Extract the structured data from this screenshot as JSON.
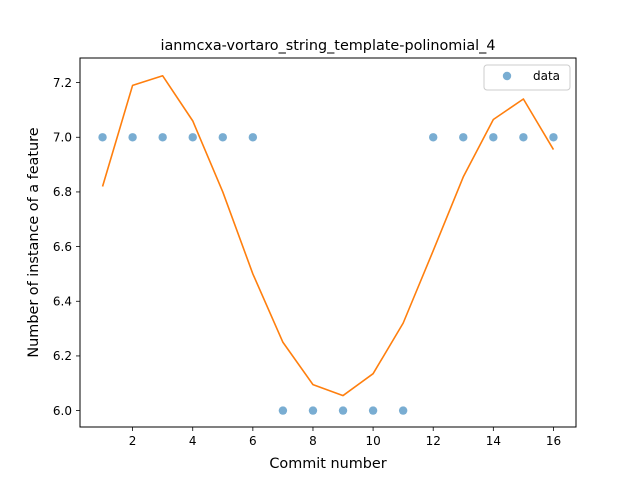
{
  "chart_data": {
    "type": "scatter",
    "title": "ianmcxa-vortaro_string_template-polinomial_4",
    "xlabel": "Commit number",
    "ylabel": "Number of instance of a feature",
    "xlim": [
      0.25,
      16.75
    ],
    "ylim": [
      5.94,
      7.29
    ],
    "xticks": [
      "2",
      "4",
      "6",
      "8",
      "10",
      "12",
      "14",
      "16"
    ],
    "yticks": [
      "6.0",
      "6.2",
      "6.4",
      "6.6",
      "6.8",
      "7.0",
      "7.2"
    ],
    "grid": false,
    "legend": {
      "placement": "top-right",
      "entries": [
        "data"
      ]
    },
    "series": [
      {
        "name": "data",
        "kind": "scatter",
        "color": "#1f77b4",
        "x": [
          1,
          2,
          3,
          4,
          5,
          6,
          7,
          8,
          9,
          10,
          11,
          12,
          13,
          14,
          15,
          16
        ],
        "y": [
          7,
          7,
          7,
          7,
          7,
          7,
          6,
          6,
          6,
          6,
          6,
          7,
          7,
          7,
          7,
          7
        ]
      },
      {
        "kind": "line",
        "color": "#ff7f0e",
        "x": [
          1,
          2,
          3,
          4,
          5,
          6,
          7,
          8,
          9,
          10,
          11,
          12,
          13,
          14,
          15,
          16
        ],
        "y": [
          6.82,
          7.19,
          7.225,
          7.06,
          6.8,
          6.5,
          6.25,
          6.095,
          6.055,
          6.135,
          6.32,
          6.585,
          6.855,
          7.065,
          7.14,
          6.955
        ]
      }
    ]
  }
}
